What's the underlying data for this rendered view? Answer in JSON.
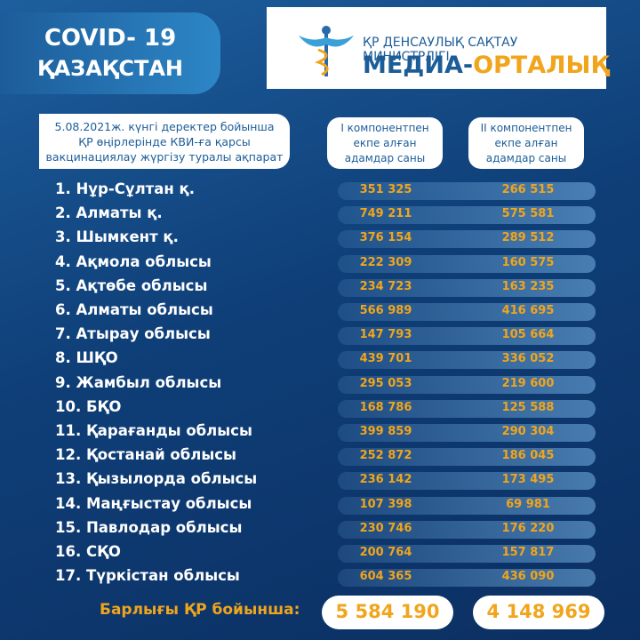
{
  "badge": {
    "line1": "COVID- 19",
    "line2": "ҚАЗАҚСТАН"
  },
  "logo": {
    "line1": "ҚР ДЕНСАУЛЫҚ САҚТАУ МИНИСТРЛІГІ",
    "line2a": "МЕДИА-",
    "line2b": "ОРТАЛЫҚ"
  },
  "intro": [
    "5.08.2021ж. күнгі деректер бойынша",
    "ҚР өңірлерінде КВИ-ға қарсы",
    "вакцинациялау жүргізу туралы ақпарат"
  ],
  "columns": [
    [
      "I компонентпен",
      "екпе алған",
      "адамдар саны"
    ],
    [
      "II компонентпен",
      "екпе алған",
      "адамдар саны"
    ]
  ],
  "rows": [
    {
      "label": "1. Нұр-Сұлтан қ.",
      "dose1": "351 325",
      "dose2": "266 515"
    },
    {
      "label": "2. Алматы қ.",
      "dose1": "749 211",
      "dose2": "575 581"
    },
    {
      "label": "3. Шымкент қ.",
      "dose1": "376 154",
      "dose2": "289 512"
    },
    {
      "label": "4. Ақмола облысы",
      "dose1": "222 309",
      "dose2": "160 575"
    },
    {
      "label": "5. Ақтөбе облысы",
      "dose1": "234 723",
      "dose2": "163 235"
    },
    {
      "label": "6. Алматы облысы",
      "dose1": "566 989",
      "dose2": "416 695"
    },
    {
      "label": "7. Атырау облысы",
      "dose1": "147 793",
      "dose2": "105 664"
    },
    {
      "label": "8. ШҚО",
      "dose1": "439 701",
      "dose2": "336 052"
    },
    {
      "label": "9. Жамбыл облысы",
      "dose1": "295 053",
      "dose2": "219 600"
    },
    {
      "label": "10. БҚО",
      "dose1": "168 786",
      "dose2": "125 588"
    },
    {
      "label": "11. Қарағанды облысы",
      "dose1": "399 859",
      "dose2": "290 304"
    },
    {
      "label": "12. Қостанай облысы",
      "dose1": "252 872",
      "dose2": "186 045"
    },
    {
      "label": "13. Қызылорда облысы",
      "dose1": "236 142",
      "dose2": "173 495"
    },
    {
      "label": "14. Маңғыстау облысы",
      "dose1": "107 398",
      "dose2": "69 981"
    },
    {
      "label": "15. Павлодар облысы",
      "dose1": "230 746",
      "dose2": "176 220"
    },
    {
      "label": "16. СҚО",
      "dose1": "200 764",
      "dose2": "157 817"
    },
    {
      "label": "17. Түркістан облысы",
      "dose1": "604 365",
      "dose2": "436 090"
    }
  ],
  "total": {
    "label": "Барлығы ҚР бойынша:",
    "dose1": "5 584 190",
    "dose2": "4 148 969"
  }
}
